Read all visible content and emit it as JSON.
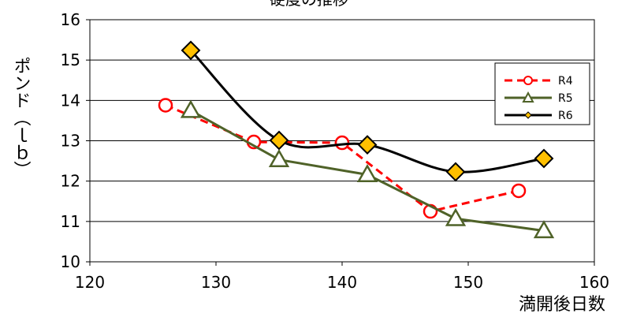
{
  "chart_data": {
    "type": "line",
    "title": "硬度の推移",
    "xlabel": "満開後日数",
    "ylabel": "ポンド（ｌｂ）",
    "xlim": [
      120,
      160
    ],
    "ylim": [
      10,
      16
    ],
    "xticks": [
      120,
      130,
      140,
      150,
      160
    ],
    "yticks": [
      10,
      11,
      12,
      13,
      14,
      15,
      16
    ],
    "grid": "horizontal",
    "legend_position": "top-right",
    "series": [
      {
        "name": "R4",
        "color": "#ff0000",
        "line_style": "dashed",
        "marker": "circle-open",
        "points": [
          [
            126,
            13.88
          ],
          [
            133,
            12.97
          ],
          [
            140,
            12.95
          ],
          [
            147,
            11.25
          ],
          [
            154,
            11.76
          ]
        ]
      },
      {
        "name": "R5",
        "color": "#4f6228",
        "line_style": "solid",
        "marker": "triangle-open",
        "points": [
          [
            128,
            13.75
          ],
          [
            135,
            12.53
          ],
          [
            142,
            12.16
          ],
          [
            149,
            11.07
          ],
          [
            156,
            10.77
          ]
        ]
      },
      {
        "name": "R6",
        "color": "#000000",
        "line_style": "solid-smooth",
        "marker": "diamond-filled",
        "marker_fill": "#ffc000",
        "points": [
          [
            128,
            15.24
          ],
          [
            135,
            13.01
          ],
          [
            142,
            12.9
          ],
          [
            149,
            12.23
          ],
          [
            156,
            12.56
          ]
        ]
      }
    ]
  }
}
